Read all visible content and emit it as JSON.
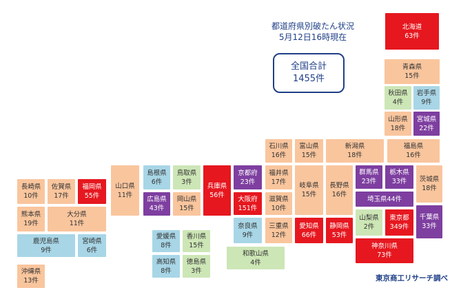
{
  "title": {
    "line1": "都道府県別破たん状況",
    "line2": "5月12日16時現在"
  },
  "total": {
    "label": "全国合計",
    "value": "1455件"
  },
  "source": "東京商工リサーチ調べ",
  "colors": {
    "orange": "#f9c59d",
    "blue": "#a8d6e7",
    "green": "#cde6b6",
    "purple": "#7e3fa0",
    "red": "#e6171f",
    "text_navy": "#1f3f86"
  },
  "prefectures": [
    {
      "name": "北海道",
      "count": "63件"
    },
    {
      "name": "青森県",
      "count": "15件"
    },
    {
      "name": "秋田県",
      "count": "4件"
    },
    {
      "name": "岩手県",
      "count": "9件"
    },
    {
      "name": "山形県",
      "count": "18件"
    },
    {
      "name": "宮城県",
      "count": "22件"
    },
    {
      "name": "福島県",
      "count": "16件"
    },
    {
      "name": "新潟県",
      "count": "18件"
    },
    {
      "name": "石川県",
      "count": "16件"
    },
    {
      "name": "富山県",
      "count": "15件"
    },
    {
      "name": "福井県",
      "count": "17件"
    },
    {
      "name": "岐阜県",
      "count": "15件"
    },
    {
      "name": "長野県",
      "count": "16件"
    },
    {
      "name": "群馬県",
      "count": "23件"
    },
    {
      "name": "栃木県",
      "count": "33件"
    },
    {
      "name": "茨城県",
      "count": "18件"
    },
    {
      "name": "埼玉県",
      "count": "44件"
    },
    {
      "name": "山梨県",
      "count": "2件"
    },
    {
      "name": "東京都",
      "count": "349件"
    },
    {
      "name": "千葉県",
      "count": "33件"
    },
    {
      "name": "神奈川県",
      "count": "73件"
    },
    {
      "name": "静岡県",
      "count": "53件"
    },
    {
      "name": "愛知県",
      "count": "66件"
    },
    {
      "name": "三重県",
      "count": "12件"
    },
    {
      "name": "滋賀県",
      "count": "10件"
    },
    {
      "name": "京都府",
      "count": "23件"
    },
    {
      "name": "大阪府",
      "count": "151件"
    },
    {
      "name": "奈良県",
      "count": "9件"
    },
    {
      "name": "和歌山県",
      "count": "4件"
    },
    {
      "name": "兵庫県",
      "count": "56件"
    },
    {
      "name": "鳥取県",
      "count": "3件"
    },
    {
      "name": "岡山県",
      "count": "15件"
    },
    {
      "name": "島根県",
      "count": "6件"
    },
    {
      "name": "広島県",
      "count": "43件"
    },
    {
      "name": "山口県",
      "count": "11件"
    },
    {
      "name": "香川県",
      "count": "15件"
    },
    {
      "name": "愛媛県",
      "count": "8件"
    },
    {
      "name": "徳島県",
      "count": "3件"
    },
    {
      "name": "高知県",
      "count": "8件"
    },
    {
      "name": "福岡県",
      "count": "55件"
    },
    {
      "name": "佐賀県",
      "count": "17件"
    },
    {
      "name": "長崎県",
      "count": "10件"
    },
    {
      "name": "大分県",
      "count": "11件"
    },
    {
      "name": "熊本県",
      "count": "19件"
    },
    {
      "name": "宮崎県",
      "count": "6件"
    },
    {
      "name": "鹿児島県",
      "count": "9件"
    },
    {
      "name": "沖縄県",
      "count": "13件"
    }
  ]
}
